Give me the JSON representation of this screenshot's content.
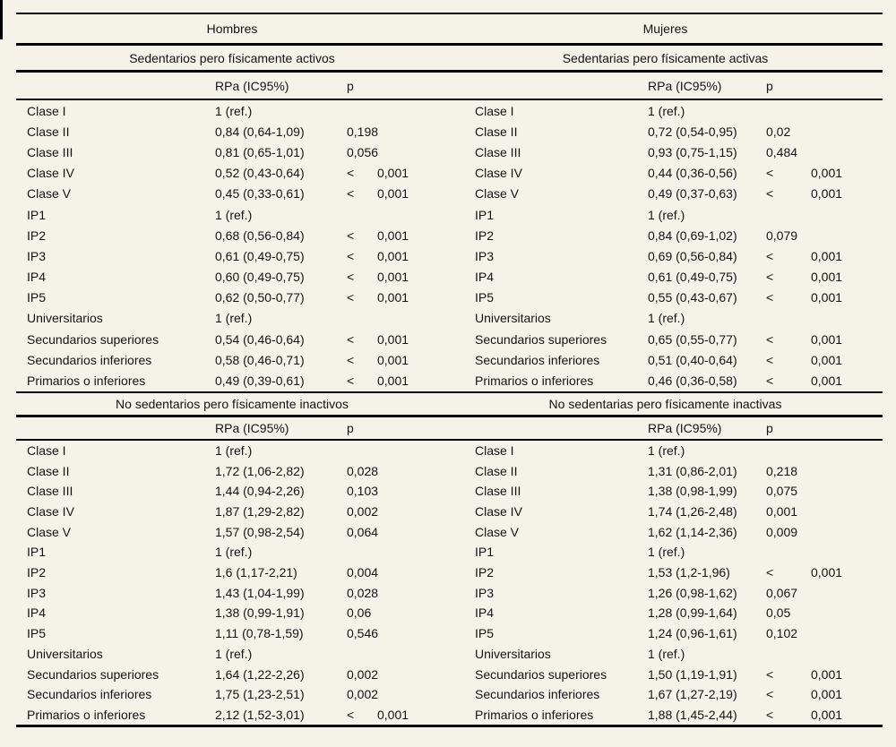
{
  "page": {
    "background_color": "#f5f2e7",
    "rule_color": "#000000",
    "text_color": "#141414"
  },
  "table": {
    "genders": {
      "left": "Hombres",
      "right": "Mujeres"
    },
    "col_headers": {
      "rpa": "RPa (IC95%)",
      "p": "p"
    },
    "sections": [
      {
        "left": {
          "title": "Sedentarios pero físicamente activos",
          "rows": [
            {
              "label": "Clase I",
              "rpa": "1 (ref.)",
              "p": ""
            },
            {
              "label": "Clase II",
              "rpa": "0,84 (0,64-1,09)",
              "p": "0,198"
            },
            {
              "label": "Clase III",
              "rpa": "0,81 (0,65-1,01)",
              "p": "0,056"
            },
            {
              "label": "Clase IV",
              "rpa": "0,52 (0,43-0,64)",
              "p": "< 0,001"
            },
            {
              "label": "Clase V",
              "rpa": "0,45 (0,33-0,61)",
              "p": "< 0,001"
            },
            {
              "label": "IP1",
              "rpa": "1 (ref.)",
              "p": ""
            },
            {
              "label": "IP2",
              "rpa": "0,68 (0,56-0,84)",
              "p": "< 0,001"
            },
            {
              "label": "IP3",
              "rpa": "0,61 (0,49-0,75)",
              "p": "< 0,001"
            },
            {
              "label": "IP4",
              "rpa": "0,60 (0,49-0,75)",
              "p": "< 0,001"
            },
            {
              "label": "IP5",
              "rpa": "0,62 (0,50-0,77)",
              "p": "< 0,001"
            },
            {
              "label": "Universitarios",
              "rpa": "1 (ref.)",
              "p": ""
            },
            {
              "label": "Secundarios superiores",
              "rpa": "0,54 (0,46-0,64)",
              "p": "< 0,001"
            },
            {
              "label": "Secundarios inferiores",
              "rpa": "0,58 (0,46-0,71)",
              "p": "< 0,001"
            },
            {
              "label": "Primarios o inferiores",
              "rpa": "0,49 (0,39-0,61)",
              "p": "< 0,001"
            }
          ]
        },
        "right": {
          "title": "Sedentarias pero físicamente activas",
          "rows": [
            {
              "label": "Clase I",
              "rpa": "1 (ref.)",
              "p": ""
            },
            {
              "label": "Clase II",
              "rpa": "0,72 (0,54-0,95)",
              "p": "0,02"
            },
            {
              "label": "Clase III",
              "rpa": "0,93 (0,75-1,15)",
              "p": "0,484"
            },
            {
              "label": "Clase IV",
              "rpa": "0,44 (0,36-0,56)",
              "p": "< 0,001"
            },
            {
              "label": "Clase V",
              "rpa": "0,49 (0,37-0,63)",
              "p": "< 0,001"
            },
            {
              "label": "IP1",
              "rpa": "1 (ref.)",
              "p": ""
            },
            {
              "label": "IP2",
              "rpa": "0,84 (0,69-1,02)",
              "p": "0,079"
            },
            {
              "label": "IP3",
              "rpa": "0,69 (0,56-0,84)",
              "p": "< 0,001"
            },
            {
              "label": "IP4",
              "rpa": "0,61 (0,49-0,75)",
              "p": "< 0,001"
            },
            {
              "label": "IP5",
              "rpa": "0,55 (0,43-0,67)",
              "p": "< 0,001"
            },
            {
              "label": "Universitarios",
              "rpa": "1 (ref.)",
              "p": ""
            },
            {
              "label": "Secundarios superiores",
              "rpa": "0,65 (0,55-0,77)",
              "p": "< 0,001"
            },
            {
              "label": "Secundarios inferiores",
              "rpa": "0,51 (0,40-0,64)",
              "p": "< 0,001"
            },
            {
              "label": "Primarios o inferiores",
              "rpa": "0,46 (0,36-0,58)",
              "p": "< 0,001"
            }
          ]
        }
      },
      {
        "left": {
          "title": "No sedentarios pero físicamente inactivos",
          "rows": [
            {
              "label": "Clase I",
              "rpa": "1 (ref.)",
              "p": ""
            },
            {
              "label": "Clase II",
              "rpa": "1,72 (1,06-2,82)",
              "p": "0,028"
            },
            {
              "label": "Clase III",
              "rpa": "1,44 (0,94-2,26)",
              "p": "0,103"
            },
            {
              "label": "Clase IV",
              "rpa": "1,87 (1,29-2,82)",
              "p": "0,002"
            },
            {
              "label": "Clase V",
              "rpa": "1,57 (0,98-2,54)",
              "p": "0,064"
            },
            {
              "label": "IP1",
              "rpa": "1 (ref.)",
              "p": ""
            },
            {
              "label": "IP2",
              "rpa": "1,6 (1,17-2,21)",
              "p": "0,004"
            },
            {
              "label": "IP3",
              "rpa": "1,43 (1,04-1,99)",
              "p": "0,028"
            },
            {
              "label": "IP4",
              "rpa": "1,38 (0,99-1,91)",
              "p": "0,06"
            },
            {
              "label": "IP5",
              "rpa": "1,11 (0,78-1,59)",
              "p": "0,546"
            },
            {
              "label": "Universitarios",
              "rpa": "1 (ref.)",
              "p": ""
            },
            {
              "label": "Secundarios superiores",
              "rpa": "1,64 (1,22-2,26)",
              "p": "0,002"
            },
            {
              "label": "Secundarios inferiores",
              "rpa": "1,75 (1,23-2,51)",
              "p": "0,002"
            },
            {
              "label": "Primarios o inferiores",
              "rpa": "2,12 (1,52-3,01)",
              "p": "< 0,001"
            }
          ]
        },
        "right": {
          "title": "No sedentarias pero físicamente inactivas",
          "rows": [
            {
              "label": "Clase I",
              "rpa": "1 (ref.)",
              "p": ""
            },
            {
              "label": "Clase II",
              "rpa": "1,31 (0,86-2,01)",
              "p": "0,218"
            },
            {
              "label": "Clase III",
              "rpa": "1,38 (0,98-1,99)",
              "p": "0,075"
            },
            {
              "label": "Clase IV",
              "rpa": "1,74 (1,26-2,48)",
              "p": "0,001"
            },
            {
              "label": "Clase V",
              "rpa": "1,62 (1,14-2,36)",
              "p": "0,009"
            },
            {
              "label": "IP1",
              "rpa": "1 (ref.)",
              "p": ""
            },
            {
              "label": "IP2",
              "rpa": "1,53 (1,2-1,96)",
              "p": "< 0,001"
            },
            {
              "label": "IP3",
              "rpa": "1,26 (0,98-1,62)",
              "p": "0,067"
            },
            {
              "label": "IP4",
              "rpa": "1,28 (0,99-1,64)",
              "p": "0,05"
            },
            {
              "label": "IP5",
              "rpa": "1,24 (0,96-1,61)",
              "p": "0,102"
            },
            {
              "label": "Universitarios",
              "rpa": "1 (ref.)",
              "p": ""
            },
            {
              "label": "Secundarios superiores",
              "rpa": "1,50 (1,19-1,91)",
              "p": "< 0,001"
            },
            {
              "label": "Secundarios inferiores",
              "rpa": "1,67 (1,27-2,19)",
              "p": "< 0,001"
            },
            {
              "label": "Primarios o inferiores",
              "rpa": "1,88 (1,45-2,44)",
              "p": "< 0,001"
            }
          ]
        }
      }
    ]
  }
}
